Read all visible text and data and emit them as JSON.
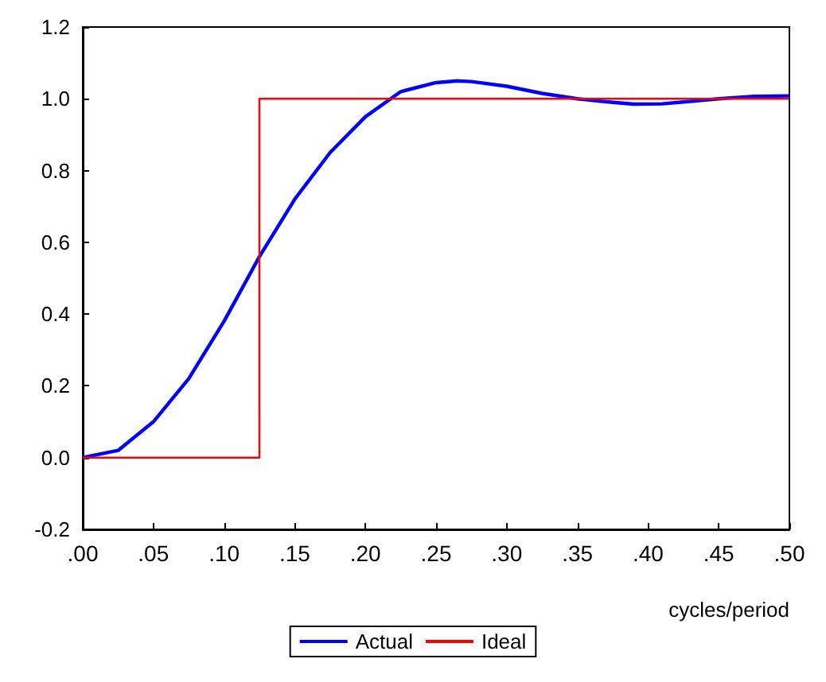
{
  "chart_data": {
    "type": "line",
    "xlabel": "cycles/period",
    "xlim": [
      0,
      0.5
    ],
    "ylim": [
      -0.2,
      1.2
    ],
    "xticks": [
      {
        "value": 0,
        "label": ".00"
      },
      {
        "value": 0.05,
        "label": ".05"
      },
      {
        "value": 0.1,
        "label": ".10"
      },
      {
        "value": 0.15,
        "label": ".15"
      },
      {
        "value": 0.2,
        "label": ".20"
      },
      {
        "value": 0.25,
        "label": ".25"
      },
      {
        "value": 0.3,
        "label": ".30"
      },
      {
        "value": 0.35,
        "label": ".35"
      },
      {
        "value": 0.4,
        "label": ".40"
      },
      {
        "value": 0.45,
        "label": ".45"
      },
      {
        "value": 0.5,
        "label": ".50"
      }
    ],
    "yticks": [
      {
        "value": -0.2,
        "label": "-0.2"
      },
      {
        "value": 0,
        "label": "0.0"
      },
      {
        "value": 0.2,
        "label": "0.2"
      },
      {
        "value": 0.4,
        "label": "0.4"
      },
      {
        "value": 0.6,
        "label": "0.6"
      },
      {
        "value": 0.8,
        "label": "0.8"
      },
      {
        "value": 1,
        "label": "1.0"
      },
      {
        "value": 1.2,
        "label": "1.2"
      }
    ],
    "grid": false,
    "legend": "bottom",
    "marker": "none",
    "line_style": "solid",
    "series": [
      {
        "name": "Actual",
        "color": "#0000ff",
        "x": [
          0,
          0.025,
          0.05,
          0.075,
          0.1,
          0.125,
          0.15,
          0.175,
          0.2,
          0.225,
          0.25,
          0.265,
          0.275,
          0.3,
          0.325,
          0.35,
          0.375,
          0.39,
          0.41,
          0.43,
          0.45,
          0.475,
          0.5
        ],
        "values": [
          0,
          0.02,
          0.1,
          0.22,
          0.38,
          0.56,
          0.72,
          0.85,
          0.95,
          1.02,
          1.045,
          1.05,
          1.048,
          1.035,
          1.015,
          1,
          0.99,
          0.985,
          0.986,
          0.993,
          1,
          1.007,
          1.008
        ]
      },
      {
        "name": "Ideal",
        "type": "step",
        "color": "#ff0000",
        "x": [
          0,
          0.125,
          0.5
        ],
        "values": [
          0,
          1,
          1
        ]
      }
    ]
  }
}
